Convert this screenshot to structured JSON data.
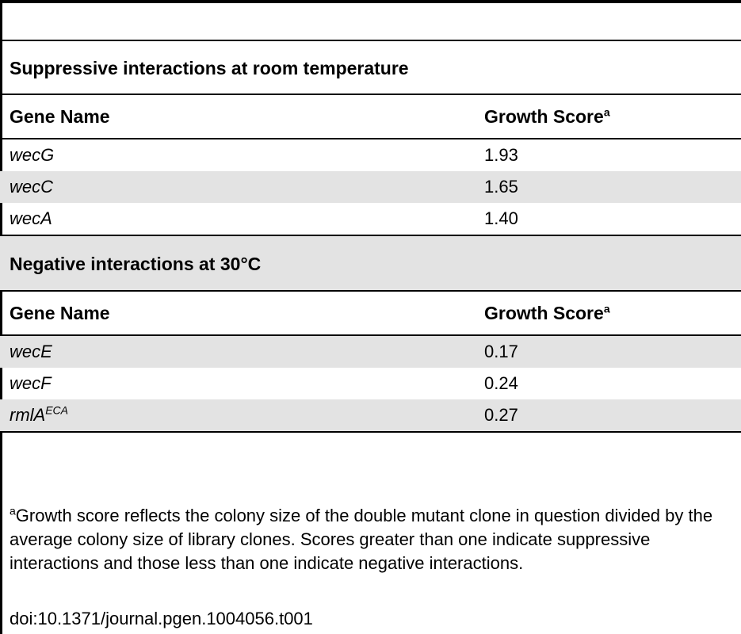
{
  "table": {
    "footnote_marker": "a",
    "sections": [
      {
        "title": "Suppressive interactions at room temperature",
        "header": {
          "col1": "Gene Name",
          "col2": "Growth Score"
        },
        "rows": [
          {
            "gene": "wecG",
            "gene_sup": "",
            "score": "1.93"
          },
          {
            "gene": "wecC",
            "gene_sup": "",
            "score": "1.65"
          },
          {
            "gene": "wecA",
            "gene_sup": "",
            "score": "1.40"
          }
        ]
      },
      {
        "title": "Negative interactions at 30°C",
        "header": {
          "col1": "Gene Name",
          "col2": "Growth Score"
        },
        "rows": [
          {
            "gene": "wecE",
            "gene_sup": "",
            "score": "0.17"
          },
          {
            "gene": "wecF",
            "gene_sup": "",
            "score": "0.24"
          },
          {
            "gene": "rmlA",
            "gene_sup": "ECA",
            "score": "0.27"
          }
        ]
      }
    ]
  },
  "footnote": {
    "marker": "a",
    "text": "Growth score reflects the colony size of the double mutant clone in question divided by the average colony size of library clones. Scores greater than one indicate suppressive interactions and those less than one indicate negative interactions."
  },
  "doi": "doi:10.1371/journal.pgen.1004056.t001"
}
